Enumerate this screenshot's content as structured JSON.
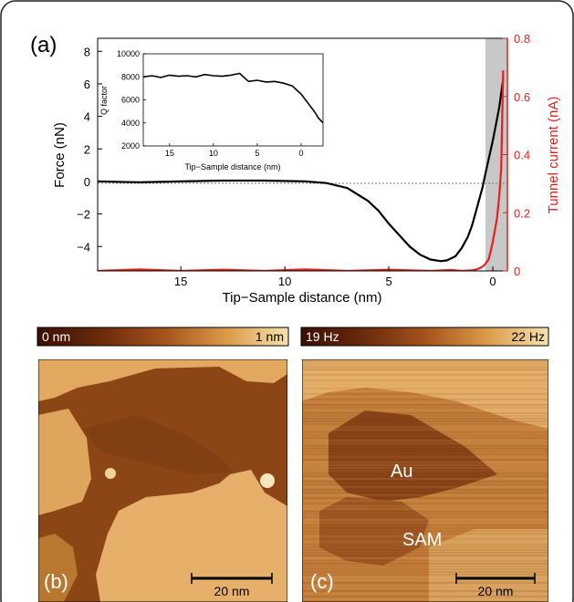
{
  "figure": {
    "panel_a_label": "(a)",
    "panel_b_label": "(b)",
    "panel_c_label": "(c)"
  },
  "chart_data": [
    {
      "type": "line",
      "xlabel": "Tip−Sample distance (nm)",
      "ylabel_left": "Force (nN)",
      "ylabel_right": "Tunnel current (nA)",
      "xlim": [
        19,
        -0.7
      ],
      "ylim_left": [
        -5.5,
        8.8
      ],
      "ylim_right": [
        0,
        0.8
      ],
      "x_ticks": [
        "15",
        "10",
        "5",
        "0"
      ],
      "y_left_ticks": [
        "8",
        "6",
        "4",
        "2",
        "0",
        "−2",
        "−4"
      ],
      "y_right_ticks": [
        "0.8",
        "0.6",
        "0.4",
        "0.2",
        "0"
      ],
      "shaded_region_x": [
        0,
        -0.7
      ],
      "zero_reference_line": true,
      "series": [
        {
          "color": "#000000",
          "axis": "left",
          "x": [
            19,
            17,
            15,
            13,
            11,
            9,
            8,
            7,
            6,
            5.5,
            5,
            4.5,
            4,
            3.5,
            3,
            2.5,
            2.2,
            1.8,
            1.5,
            1.2,
            1,
            0.8,
            0.5,
            0.3,
            0,
            -0.3,
            -0.5
          ],
          "y": [
            0,
            -0.05,
            0,
            0.05,
            0.05,
            0,
            -0.1,
            -0.4,
            -1.2,
            -1.8,
            -2.6,
            -3.3,
            -4.0,
            -4.5,
            -4.8,
            -4.9,
            -4.85,
            -4.6,
            -4.1,
            -3.4,
            -2.7,
            -1.8,
            -0.4,
            0.8,
            2.5,
            4.5,
            6.3
          ]
        },
        {
          "color": "#e8201a",
          "axis": "right",
          "x": [
            19,
            17,
            15,
            13,
            11,
            9,
            7,
            5,
            3,
            2,
            1.5,
            1,
            0.8,
            0.6,
            0.4,
            0.2,
            0.1,
            0,
            -0.1,
            -0.2,
            -0.3,
            -0.4,
            -0.5
          ],
          "y": [
            0,
            0.005,
            0,
            0.004,
            0,
            0.005,
            0,
            0.004,
            0,
            0.003,
            0,
            0.002,
            0.005,
            0.01,
            0.02,
            0.04,
            0.07,
            0.1,
            0.14,
            0.18,
            0.25,
            0.35,
            0.69
          ]
        }
      ]
    },
    {
      "type": "line",
      "title": "",
      "xlabel": "Tip−Sample distance (nm)",
      "ylabel": "Q factor",
      "xlim": [
        18,
        -2.5
      ],
      "ylim": [
        2000,
        10000
      ],
      "x_ticks": [
        "15",
        "10",
        "5",
        "0"
      ],
      "y_ticks": [
        "10000",
        "8000",
        "6000",
        "4000",
        "2000"
      ],
      "series": [
        {
          "color": "#000000",
          "x": [
            18,
            17,
            16,
            15,
            14,
            13,
            12,
            11,
            10,
            9,
            8,
            7,
            6,
            5,
            4,
            3,
            2,
            1,
            0,
            -0.5,
            -1,
            -1.5,
            -2,
            -2.5
          ],
          "y": [
            8000,
            8100,
            7950,
            8150,
            8050,
            8100,
            8000,
            8200,
            8100,
            8050,
            8150,
            8300,
            7600,
            7700,
            7550,
            7600,
            7450,
            7200,
            6500,
            6000,
            5500,
            5000,
            4400,
            4000
          ]
        }
      ]
    }
  ],
  "colorbar_b": {
    "min_label": "0 nm",
    "max_label": "1 nm"
  },
  "colorbar_c": {
    "min_label": "19 Hz",
    "max_label": "22 Hz"
  },
  "image_b": {
    "scalebar_label": "20 nm"
  },
  "image_c": {
    "scalebar_label": "20 nm",
    "annot_au": "Au",
    "annot_sam": "SAM"
  },
  "colors": {
    "force_curve": "#000000",
    "current_curve": "#e8201a",
    "shade": "#c8c8c8",
    "afm_dark": "#7a3a12",
    "afm_light": "#e9b46a"
  }
}
